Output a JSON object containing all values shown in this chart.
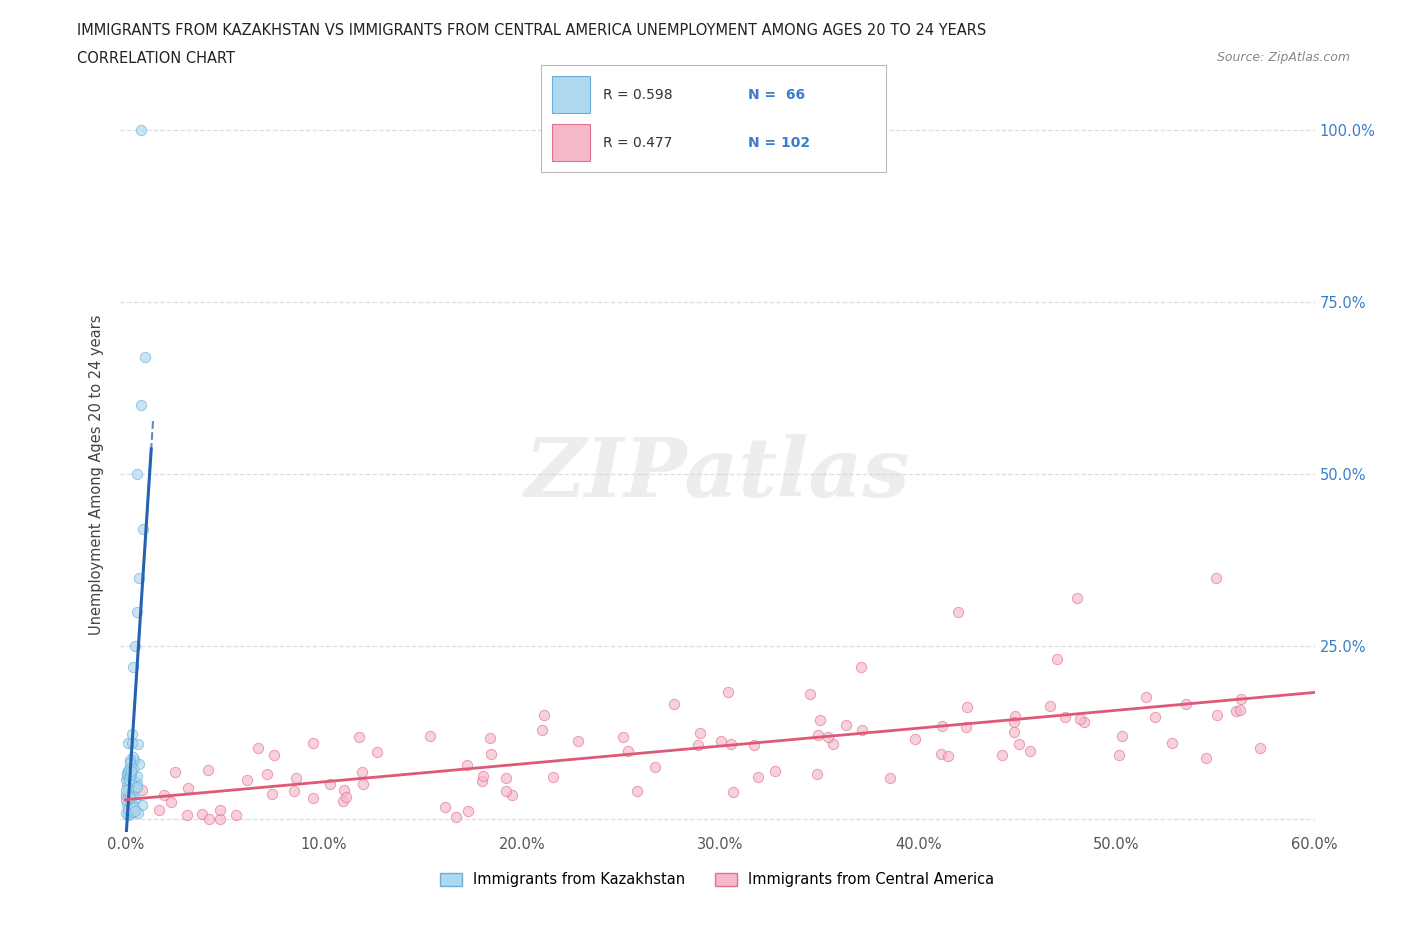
{
  "title_line1": "IMMIGRANTS FROM KAZAKHSTAN VS IMMIGRANTS FROM CENTRAL AMERICA UNEMPLOYMENT AMONG AGES 20 TO 24 YEARS",
  "title_line2": "CORRELATION CHART",
  "source": "Source: ZipAtlas.com",
  "ylabel": "Unemployment Among Ages 20 to 24 years",
  "legend_label1": "Immigrants from Kazakhstan",
  "legend_label2": "Immigrants from Central America",
  "R1": 0.598,
  "N1": 66,
  "R2": 0.477,
  "N2": 102,
  "color1": "#add8f0",
  "color1_edge": "#6aaed6",
  "color2": "#f4b8c8",
  "color2_edge": "#e07090",
  "trend1_color": "#2563b0",
  "trend2_color": "#e05878",
  "background": "#ffffff",
  "xlim": [
    -0.003,
    0.6
  ],
  "ylim": [
    -0.02,
    1.02
  ],
  "xtick_vals": [
    0.0,
    0.1,
    0.2,
    0.3,
    0.4,
    0.5,
    0.6
  ],
  "xticklabels": [
    "0.0%",
    "10.0%",
    "20.0%",
    "30.0%",
    "40.0%",
    "50.0%",
    "60.0%"
  ],
  "ytick_vals": [
    0.0,
    0.25,
    0.5,
    0.75,
    1.0
  ],
  "yticklabels_right": [
    "",
    "25.0%",
    "50.0%",
    "75.0%",
    "100.0%"
  ],
  "grid_color": "#dddddd",
  "watermark_text": "ZIPatlas",
  "dot_size": 55,
  "dot_alpha": 0.65,
  "legend_box_color": "#f0f0f0"
}
